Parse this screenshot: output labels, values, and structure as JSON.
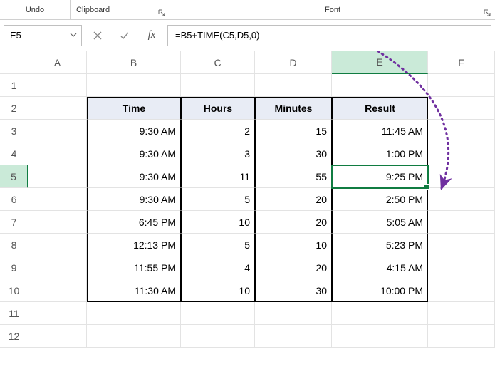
{
  "ribbon": {
    "undo": "Undo",
    "clipboard": "Clipboard",
    "font": "Font"
  },
  "namebox": {
    "value": "E5"
  },
  "formula": {
    "value": "=B5+TIME(C5,D5,0)"
  },
  "columns": [
    "A",
    "B",
    "C",
    "D",
    "E",
    "F"
  ],
  "rows": [
    "1",
    "2",
    "3",
    "4",
    "5",
    "6",
    "7",
    "8",
    "9",
    "10",
    "11",
    "12"
  ],
  "selectedCol": "E",
  "selectedRow": "5",
  "headers": {
    "time": "Time",
    "hours": "Hours",
    "minutes": "Minutes",
    "result": "Result"
  },
  "data": [
    {
      "time": "9:30 AM",
      "hours": "2",
      "minutes": "15",
      "result": "11:45 AM"
    },
    {
      "time": "9:30 AM",
      "hours": "3",
      "minutes": "30",
      "result": "1:00 PM"
    },
    {
      "time": "9:30 AM",
      "hours": "11",
      "minutes": "55",
      "result": "9:25 PM"
    },
    {
      "time": "9:30 AM",
      "hours": "5",
      "minutes": "20",
      "result": "2:50 PM"
    },
    {
      "time": "6:45 PM",
      "hours": "10",
      "minutes": "20",
      "result": "5:05 AM"
    },
    {
      "time": "12:13 PM",
      "hours": "5",
      "minutes": "10",
      "result": "5:23 PM"
    },
    {
      "time": "11:55 PM",
      "hours": "4",
      "minutes": "20",
      "result": "4:15 AM"
    },
    {
      "time": "11:30 AM",
      "hours": "10",
      "minutes": "30",
      "result": "10:00 PM"
    }
  ],
  "colors": {
    "accent": "#107c41",
    "arrow": "#7030a0",
    "headerFill": "#e8ecf5"
  }
}
